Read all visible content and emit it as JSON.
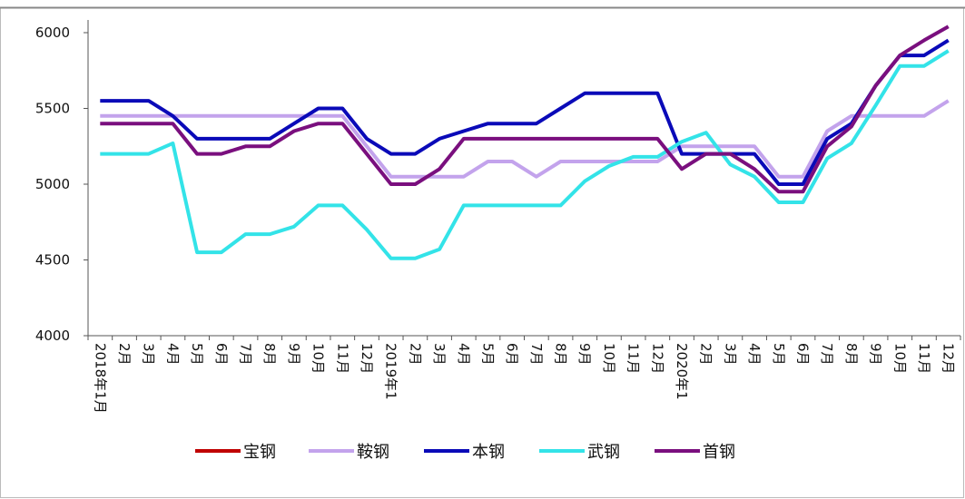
{
  "chart_data": {
    "type": "line",
    "categories": [
      "2018年1月",
      "2月",
      "3月",
      "4月",
      "5月",
      "6月",
      "7月",
      "8月",
      "9月",
      "10月",
      "11月",
      "12月",
      "2019年1",
      "2月",
      "3月",
      "4月",
      "5月",
      "6月",
      "7月",
      "8月",
      "9月",
      "10月",
      "11月",
      "12月",
      "2020年1",
      "2月",
      "3月",
      "4月",
      "5月",
      "6月",
      "7月",
      "8月",
      "9月",
      "10月",
      "11月",
      "12月"
    ],
    "series": [
      {
        "name": "宝钢",
        "color": "#c00000",
        "values": [
          null,
          null,
          null,
          null,
          null,
          null,
          null,
          null,
          null,
          null,
          null,
          null,
          null,
          null,
          null,
          null,
          null,
          null,
          null,
          null,
          null,
          null,
          null,
          null,
          null,
          null,
          null,
          null,
          null,
          null,
          null,
          null,
          null,
          null,
          null,
          null
        ]
      },
      {
        "name": "鞍钢",
        "color": "#c3a3ec",
        "values": [
          5450,
          5450,
          5450,
          5450,
          5450,
          5450,
          5450,
          5450,
          5450,
          5450,
          5450,
          5250,
          5050,
          5050,
          5050,
          5050,
          5150,
          5150,
          5050,
          5150,
          5150,
          5150,
          5150,
          5150,
          5250,
          5250,
          5250,
          5250,
          5050,
          5050,
          5350,
          5450,
          5450,
          5450,
          5450,
          5550
        ]
      },
      {
        "name": "本钢",
        "color": "#0a0ab8",
        "values": [
          5550,
          5550,
          5550,
          5450,
          5300,
          5300,
          5300,
          5300,
          5400,
          5500,
          5500,
          5300,
          5200,
          5200,
          5300,
          5350,
          5400,
          5400,
          5400,
          5500,
          5600,
          5600,
          5600,
          5600,
          5200,
          5200,
          5200,
          5200,
          5000,
          5000,
          5300,
          5400,
          5650,
          5850,
          5850,
          5950
        ]
      },
      {
        "name": "武钢",
        "color": "#33e3e8",
        "values": [
          5200,
          5200,
          5200,
          5270,
          4550,
          4550,
          4670,
          4670,
          4720,
          4860,
          4860,
          4700,
          4510,
          4510,
          4570,
          4860,
          4860,
          4860,
          4860,
          4860,
          5020,
          5120,
          5180,
          5180,
          5280,
          5340,
          5130,
          5050,
          4880,
          4880,
          5170,
          5270,
          5520,
          5780,
          5780,
          5880
        ]
      },
      {
        "name": "首钢",
        "color": "#7a0f7e",
        "values": [
          5400,
          5400,
          5400,
          5400,
          5200,
          5200,
          5250,
          5250,
          5350,
          5400,
          5400,
          5200,
          5000,
          5000,
          5100,
          5300,
          5300,
          5300,
          5300,
          5300,
          5300,
          5300,
          5300,
          5300,
          5100,
          5200,
          5200,
          5100,
          4950,
          4950,
          5250,
          5380,
          5650,
          5850,
          5950,
          6040
        ]
      }
    ],
    "ylim": [
      4000,
      6000
    ],
    "yticks": [
      4000,
      4500,
      5000,
      5500,
      6000
    ]
  }
}
